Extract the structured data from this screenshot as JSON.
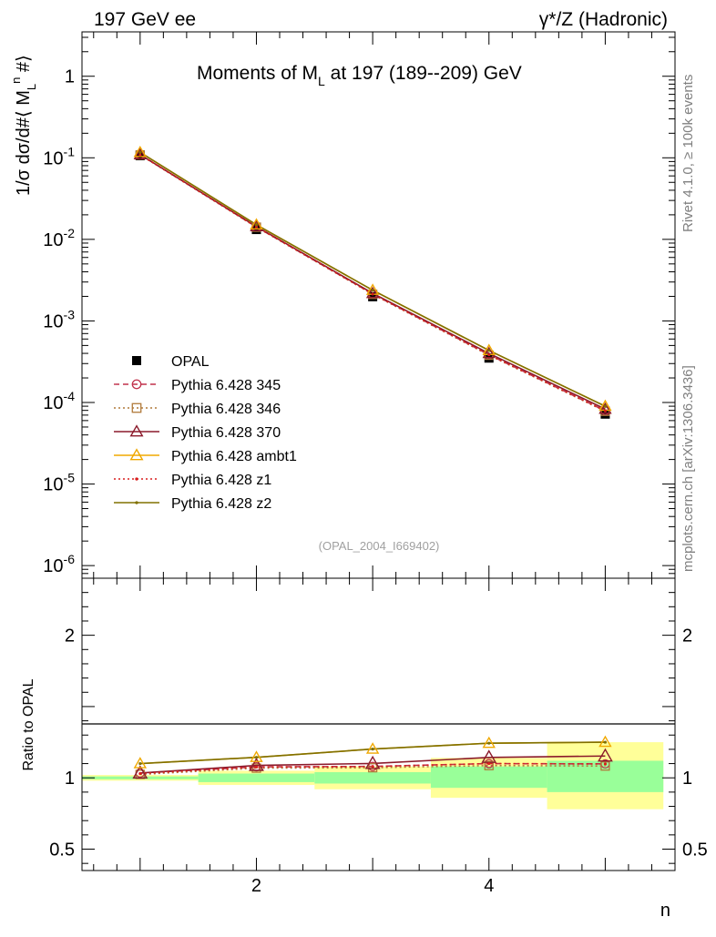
{
  "header": {
    "left_title": "197 GeV ee",
    "right_title": "γ*/Z (Hadronic)"
  },
  "side_labels": {
    "rivet": "Rivet 4.1.0, ≥ 100k events",
    "mcplots": "mcplots.cern.ch [arXiv:1306.3436]"
  },
  "chart_data": [
    {
      "type": "line",
      "scale": "log",
      "title": "Moments of M_L at 197 (189--209) GeV",
      "ylabel": "1/σ dσ/d#⟨ M_L^n #⟩",
      "xlabel": "n",
      "xlim": [
        0.5,
        5.6
      ],
      "ylim": [
        7e-07,
        3.5
      ],
      "x": [
        1,
        2,
        3,
        4,
        5
      ],
      "y_tick_labels": [
        "10^-6",
        "10^-5",
        "10^-4",
        "10^-3",
        "10^-2",
        "10^-1",
        "1"
      ],
      "watermark": "(OPAL_2004_I669402)",
      "series": [
        {
          "name": "OPAL",
          "values": [
            0.106,
            0.0132,
            0.00198,
            0.00035,
            7.2e-05
          ],
          "color": "#000000",
          "marker": "square-filled",
          "line": "none"
        },
        {
          "name": "Pythia 6.428 345",
          "values": [
            0.1095,
            0.0142,
            0.00214,
            0.000385,
            7.9e-05
          ],
          "color": "#c0304a",
          "marker": "circle-open",
          "line": "dashed"
        },
        {
          "name": "Pythia 6.428 346",
          "values": [
            0.1085,
            0.0141,
            0.00212,
            0.00038,
            7.8e-05
          ],
          "color": "#b07a3a",
          "marker": "square-open",
          "line": "dotted"
        },
        {
          "name": "Pythia 6.428 370",
          "values": [
            0.1095,
            0.01435,
            0.00218,
            0.0004,
            8.3e-05
          ],
          "color": "#8b1a2b",
          "marker": "triangle-open",
          "line": "solid"
        },
        {
          "name": "Pythia 6.428 ambt1",
          "values": [
            0.1165,
            0.0151,
            0.00238,
            0.000435,
            9e-05
          ],
          "color": "#f0a800",
          "marker": "triangle-open",
          "line": "solid"
        },
        {
          "name": "Pythia 6.428 z1",
          "values": [
            0.109,
            0.0142,
            0.00214,
            0.000385,
            7.9e-05
          ],
          "color": "#d81e1e",
          "marker": "dot",
          "line": "dotted"
        },
        {
          "name": "Pythia 6.428 z2",
          "values": [
            0.1165,
            0.0151,
            0.00238,
            0.000435,
            9e-05
          ],
          "color": "#807000",
          "marker": "dot",
          "line": "solid"
        }
      ]
    },
    {
      "type": "line",
      "title": "",
      "ylabel": "Ratio to OPAL",
      "xlabel": "n",
      "xlim": [
        0.5,
        5.6
      ],
      "ylim": [
        0.35,
        2.4
      ],
      "x": [
        1,
        2,
        3,
        4,
        5
      ],
      "x_tick_labels": [
        "2",
        "4"
      ],
      "y_tick_labels": [
        "0.5",
        "1",
        "2"
      ],
      "bands": {
        "bins": [
          [
            0.5,
            1.5
          ],
          [
            1.5,
            2.5
          ],
          [
            2.5,
            3.5
          ],
          [
            3.5,
            4.5
          ],
          [
            4.5,
            5.5
          ]
        ],
        "stat_low": [
          0.99,
          0.97,
          0.96,
          0.93,
          0.9
        ],
        "stat_high": [
          1.01,
          1.03,
          1.04,
          1.08,
          1.12
        ],
        "total_low": [
          0.98,
          0.95,
          0.92,
          0.86,
          0.78
        ],
        "total_high": [
          1.02,
          1.05,
          1.08,
          1.14,
          1.25
        ],
        "stat_color": "#99ff99",
        "total_color": "#ffff99"
      },
      "series": [
        {
          "name": "Pythia 6.428 345",
          "values": [
            1.034,
            1.077,
            1.08,
            1.1,
            1.098
          ]
        },
        {
          "name": "Pythia 6.428 346",
          "values": [
            1.024,
            1.068,
            1.071,
            1.086,
            1.083
          ]
        },
        {
          "name": "Pythia 6.428 370",
          "values": [
            1.034,
            1.087,
            1.101,
            1.143,
            1.153
          ]
        },
        {
          "name": "Pythia 6.428 ambt1",
          "values": [
            1.1,
            1.144,
            1.202,
            1.243,
            1.25
          ]
        },
        {
          "name": "Pythia 6.428 z1",
          "values": [
            1.03,
            1.076,
            1.08,
            1.1,
            1.097
          ]
        },
        {
          "name": "Pythia 6.428 z2",
          "values": [
            1.1,
            1.144,
            1.202,
            1.243,
            1.25
          ]
        }
      ]
    }
  ]
}
